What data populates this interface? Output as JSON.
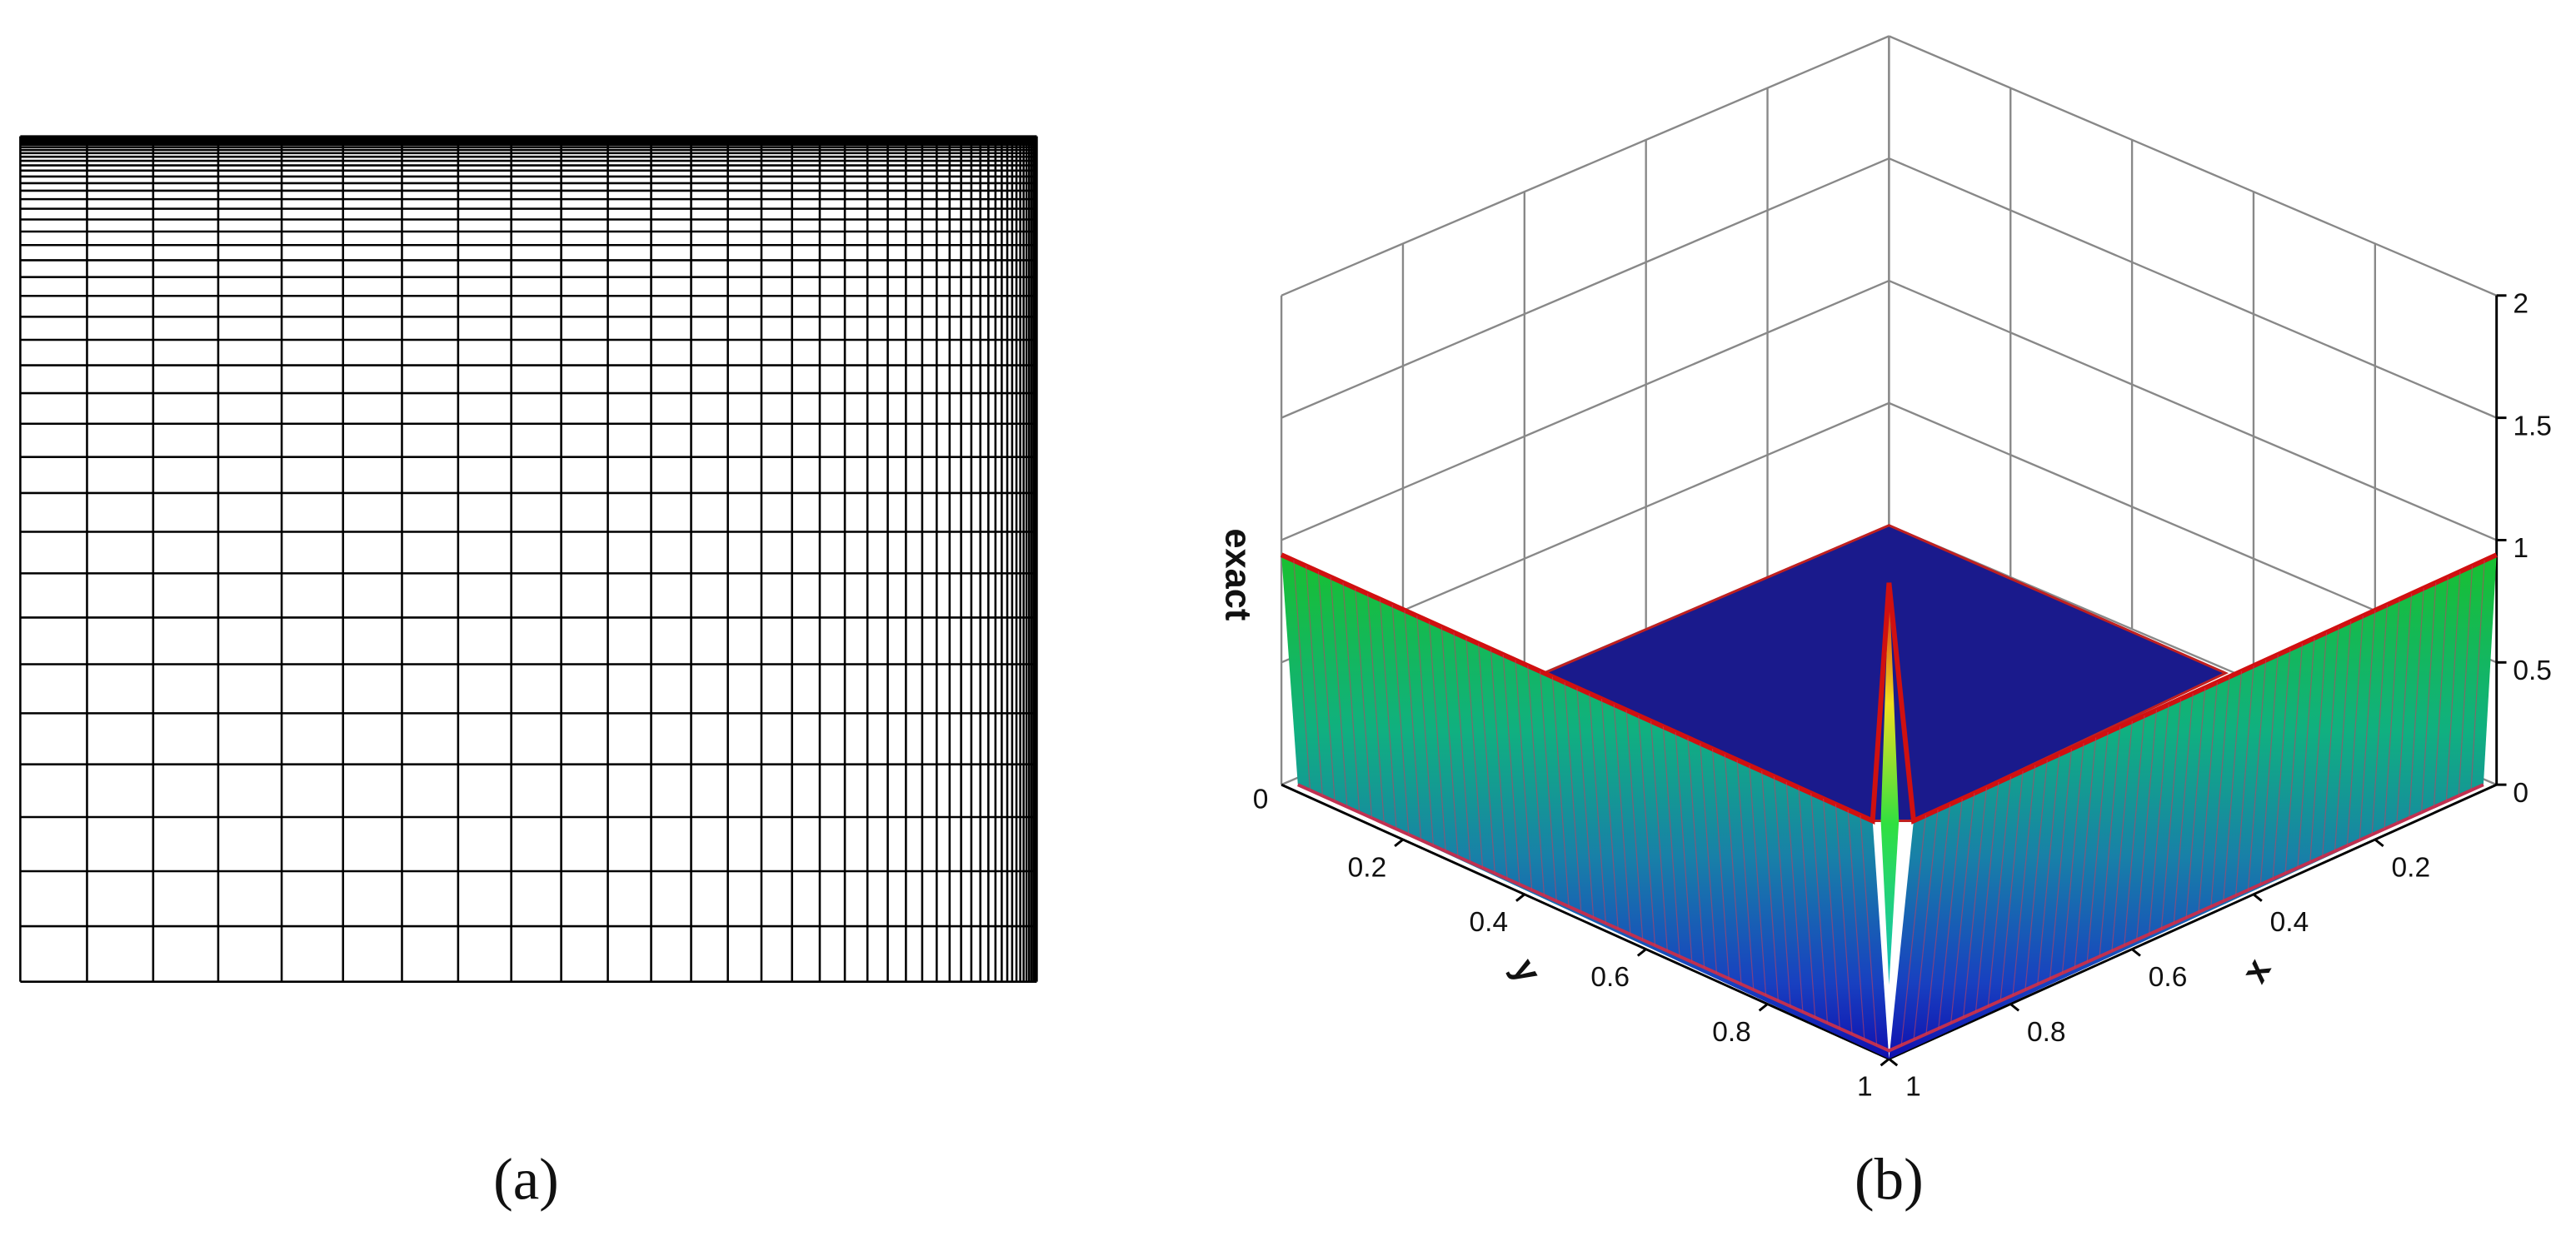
{
  "panels": [
    {
      "label": "(a)"
    },
    {
      "label": "(b)",
      "z_label": "exact",
      "x_label": "x",
      "y_label": "y",
      "z_lim": [
        0,
        2
      ],
      "z_ticks": [
        0,
        0.5,
        1,
        1.5,
        2
      ],
      "z_ticks_left": [
        0
      ],
      "x_lim": [
        0,
        1
      ],
      "x_ticks": [
        0.2,
        0.4,
        0.6,
        0.8,
        1
      ],
      "y_lim": [
        0,
        1
      ],
      "y_ticks": [
        0.2,
        0.4,
        0.6,
        0.8,
        1
      ]
    }
  ]
}
